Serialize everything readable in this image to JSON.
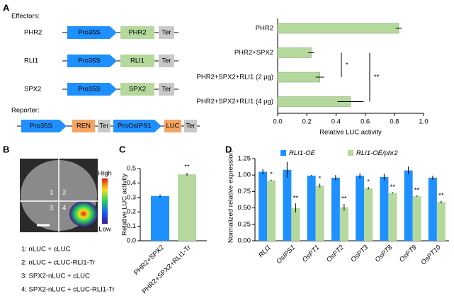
{
  "panel_labels": [
    "A",
    "B",
    "C",
    "D"
  ],
  "constructs": {
    "effectors_title": "Effectors:",
    "effectors": [
      {
        "name": "PHR2",
        "parts": [
          "Pro35S",
          "PHR2",
          "Ter"
        ]
      },
      {
        "name": "RLI1",
        "parts": [
          "Pro35S",
          "RLI1",
          "Ter"
        ]
      },
      {
        "name": "SPX2",
        "parts": [
          "Pro35S",
          "SPX2",
          "Ter"
        ]
      }
    ],
    "reporter_title": "Reporter:",
    "reporter": [
      "Pro35S",
      "REN",
      "Ter",
      "ProOsIPS1",
      "LUC",
      "Ter"
    ]
  },
  "imaging": {
    "quadrants": [
      "1",
      "2",
      "3",
      "4"
    ],
    "scale_high": "High",
    "scale_low": "Low",
    "legend": [
      "1: nLUC + cLUC",
      "2: nLUC + cLUC-RLI1-Tr",
      "3: SPX2-nLUC + cLUC",
      "4: SPX2-nLUC + cLUC-RLI1-Tr"
    ]
  },
  "chart_data": [
    {
      "type": "hbar",
      "categories": [
        "PHR2",
        "PHR2+SPX2",
        "PHR2+SPX2+RLI1 (2 μg)",
        "PHR2+SPX2+RLI1 (4 μg)"
      ],
      "values": [
        0.83,
        0.23,
        0.29,
        0.5
      ],
      "errors": [
        0.02,
        0.02,
        0.03,
        0.09
      ],
      "color": "#b5d99c",
      "xlabel": "Relative LUC activity",
      "xlim": [
        0,
        1
      ],
      "xticks": [
        {
          "value": 0,
          "label": "0.0"
        },
        0.2,
        0.4,
        0.6,
        0.8,
        {
          "value": 1,
          "label": "1.0"
        }
      ],
      "significance": [
        "*",
        "**"
      ]
    },
    {
      "type": "bar",
      "categories": [
        "PHR2+SPX2",
        "PHR2+SPX2+RLI1-Tr"
      ],
      "values": [
        0.31,
        0.46
      ],
      "errors": [
        0.01,
        0.01
      ],
      "colors": [
        "#1e90ff",
        "#b5d99c"
      ],
      "ylabel": "Relative LUC activity",
      "ylim": [
        0,
        0.5
      ],
      "yticks": [
        {
          "value": 0,
          "label": "0.0"
        },
        0.1,
        0.2,
        0.3,
        0.4,
        0.5
      ],
      "significance": [
        null,
        "**"
      ]
    },
    {
      "type": "grouped_bar",
      "categories": [
        "RLI1",
        "OsIPS1",
        "OsPT1",
        "OsPT2",
        "OsPT3",
        "OsPT8",
        "OsPT9",
        "OsPT10"
      ],
      "series": [
        {
          "name": "RLI1-OE",
          "color": "#1e90ff",
          "values": [
            1.05,
            1.08,
            0.99,
            0.96,
            0.99,
            0.97,
            1.07,
            0.96
          ],
          "errors": [
            0.04,
            0.12,
            0.01,
            0.04,
            0.04,
            0.05,
            0.06,
            0.03
          ]
        },
        {
          "name": "RLI1-OE/phr2",
          "color": "#b5d99c",
          "values": [
            0.92,
            0.5,
            0.84,
            0.51,
            0.8,
            0.73,
            0.68,
            0.59
          ],
          "errors": [
            0.01,
            0.07,
            0.03,
            0.05,
            0.02,
            0.01,
            0.01,
            0.02
          ]
        }
      ],
      "ylabel": "Normalized relative expression",
      "ylim": [
        0,
        1.25
      ],
      "yticks": [
        {
          "value": 0,
          "label": "0.00"
        },
        0.25,
        {
          "value": 0.5,
          "label": "0.50"
        },
        0.75,
        {
          "value": 1,
          "label": "1.00"
        },
        1.25
      ],
      "significance": [
        "*",
        "**",
        "*",
        "**",
        "*",
        "**",
        "**",
        "**"
      ]
    }
  ]
}
